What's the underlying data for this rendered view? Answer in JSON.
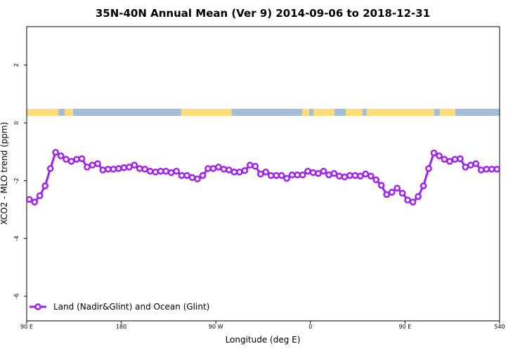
{
  "chart_data": {
    "type": "line",
    "title": "35N-40N Annual Mean (Ver 9)   2014-09-06 to 2018-12-31",
    "x_label": "Longitude (deg E)",
    "y_label": "XCO2 - MLO trend (ppm)",
    "xlim": [
      90,
      540
    ],
    "ylim": [
      -6.85,
      3.33
    ],
    "xticks": [
      {
        "value": 90,
        "label": "90 E"
      },
      180,
      {
        "value": 270,
        "label": "90 W"
      },
      {
        "value": 360,
        "label": "0"
      },
      {
        "value": 450,
        "label": "90 E"
      },
      540
    ],
    "yticks": [
      -6,
      -4,
      -2,
      0,
      2
    ],
    "legend": "bottomleft",
    "x": [
      92.5,
      97.5,
      102.5,
      107.5,
      112.5,
      117.5,
      122.5,
      127.5,
      132.5,
      137.5,
      142.5,
      147.5,
      152.5,
      157.5,
      162.5,
      167.5,
      172.5,
      177.5,
      182.5,
      187.5,
      192.5,
      197.5,
      202.5,
      207.5,
      212.5,
      217.5,
      222.5,
      227.5,
      232.5,
      237.5,
      242.5,
      247.5,
      252.5,
      257.5,
      262.5,
      267.5,
      272.5,
      277.5,
      282.5,
      287.5,
      292.5,
      297.5,
      302.5,
      307.5,
      312.5,
      317.5,
      322.5,
      327.5,
      332.5,
      337.5,
      342.5,
      347.5,
      352.5,
      357.5,
      362.5,
      367.5,
      372.5,
      377.5,
      382.5,
      387.5,
      392.5,
      397.5,
      402.5,
      407.5,
      412.5,
      417.5,
      422.5,
      427.5,
      432.5,
      437.5,
      442.5,
      447.5,
      452.5,
      457.5,
      462.5,
      467.5,
      472.5,
      477.5,
      482.5,
      487.5,
      492.5,
      497.5,
      502.5,
      507.5,
      512.5,
      517.5,
      522.5,
      527.5,
      532.5,
      537.5
    ],
    "series": [
      {
        "name": "Land (Nadir&Glint) and Ocean (Glint)",
        "color": "#a020f0",
        "values": [
          -2.65,
          -2.74,
          -2.52,
          -2.18,
          -1.58,
          -1.02,
          -1.14,
          -1.26,
          -1.33,
          -1.26,
          -1.24,
          -1.53,
          -1.46,
          -1.41,
          -1.63,
          -1.6,
          -1.6,
          -1.58,
          -1.55,
          -1.53,
          -1.46,
          -1.58,
          -1.6,
          -1.67,
          -1.7,
          -1.67,
          -1.67,
          -1.72,
          -1.67,
          -1.82,
          -1.82,
          -1.89,
          -1.94,
          -1.82,
          -1.58,
          -1.58,
          -1.53,
          -1.6,
          -1.63,
          -1.7,
          -1.7,
          -1.65,
          -1.46,
          -1.5,
          -1.77,
          -1.7,
          -1.82,
          -1.82,
          -1.82,
          -1.92,
          -1.8,
          -1.8,
          -1.8,
          -1.67,
          -1.72,
          -1.75,
          -1.67,
          -1.8,
          -1.75,
          -1.84,
          -1.87,
          -1.82,
          -1.82,
          -1.84,
          -1.77,
          -1.84,
          -1.97,
          -2.16,
          -2.48,
          -2.4,
          -2.26,
          -2.43,
          -2.67,
          -2.74,
          -2.55,
          -2.18,
          -1.58,
          -1.04,
          -1.14,
          -1.26,
          -1.33,
          -1.26,
          -1.24,
          -1.53,
          -1.46,
          -1.41,
          -1.63,
          -1.6,
          -1.6,
          -1.6
        ]
      }
    ]
  }
}
